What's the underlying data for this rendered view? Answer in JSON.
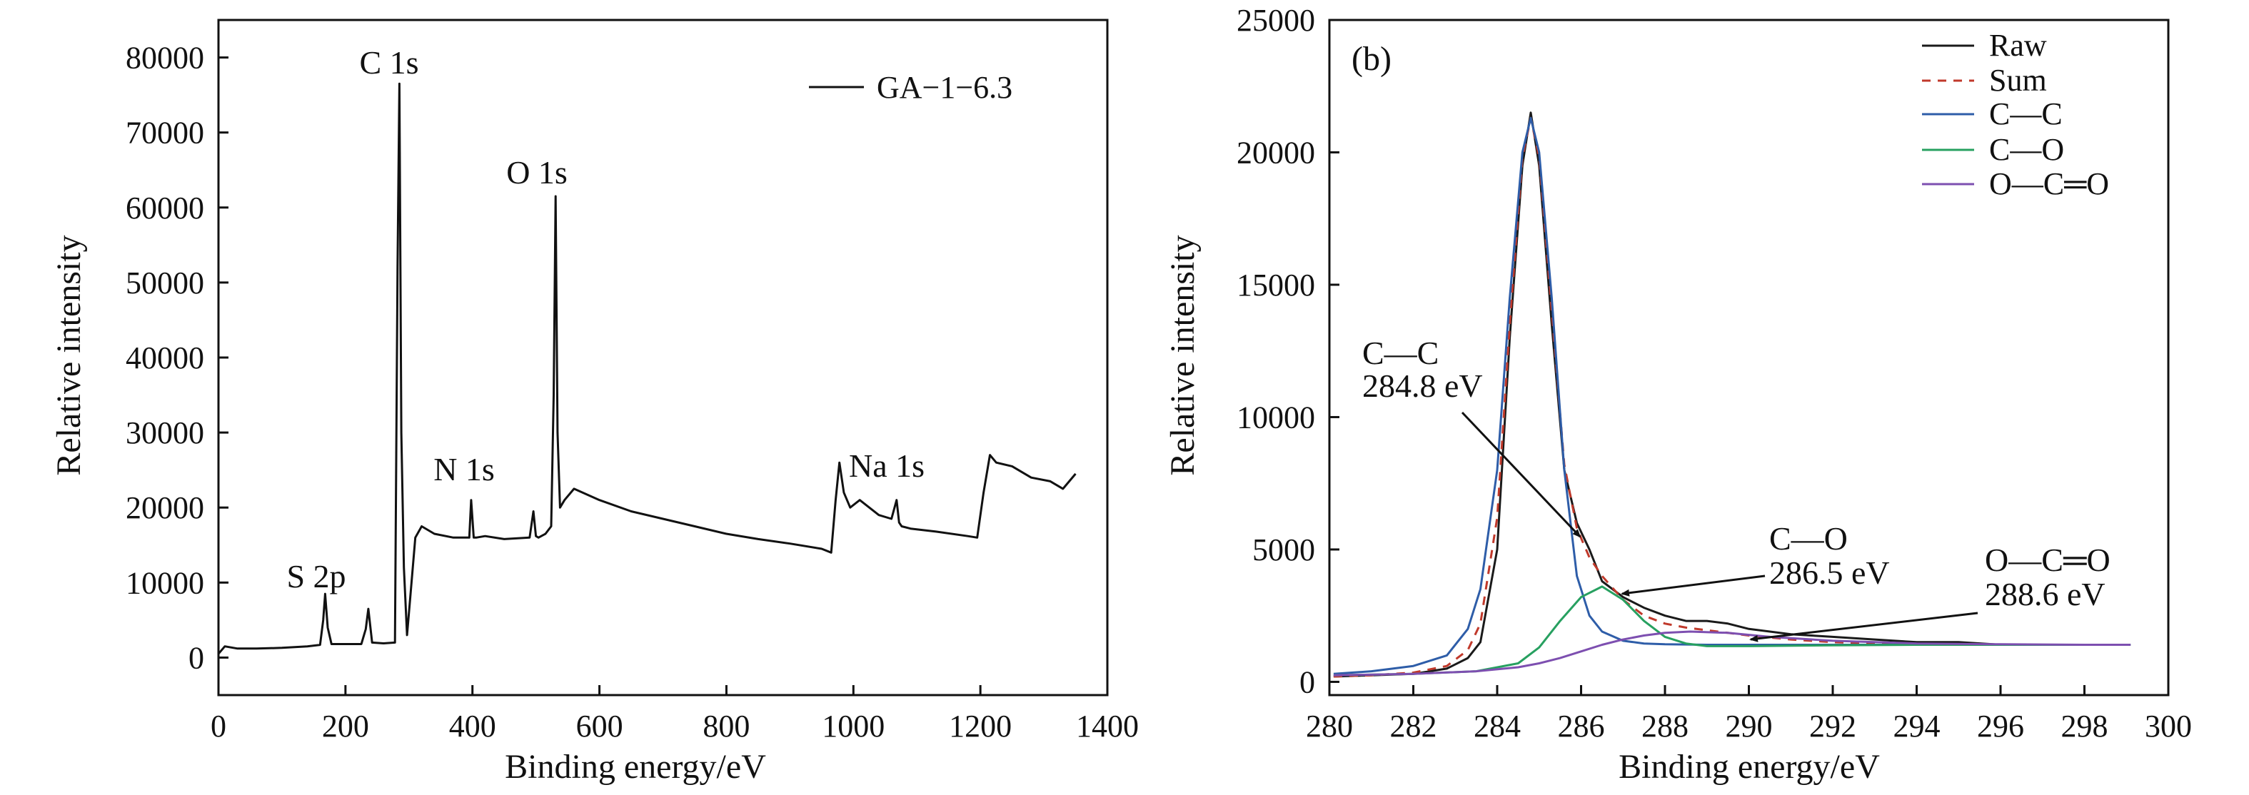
{
  "chart_data": [
    {
      "type": "line",
      "panel": "a",
      "panel_label": "",
      "xlabel": "Binding energy/eV",
      "ylabel": "Relative intensity",
      "xlim": [
        0,
        1400
      ],
      "ylim": [
        -5000,
        85000
      ],
      "xticks": [
        "0",
        "200",
        "400",
        "600",
        "800",
        "1000",
        "1200",
        "1400"
      ],
      "yticks": [
        "0",
        "10000",
        "20000",
        "30000",
        "40000",
        "50000",
        "60000",
        "70000",
        "80000"
      ],
      "grid": false,
      "legend_position": "top-right",
      "series": [
        {
          "name": "GA−1−6.3",
          "color": "#111111",
          "x": [
            0,
            10,
            30,
            60,
            100,
            140,
            160,
            165,
            168,
            172,
            178,
            200,
            225,
            232,
            236,
            242,
            260,
            278,
            282,
            285,
            288,
            292,
            297,
            302,
            310,
            320,
            340,
            370,
            395,
            398,
            402,
            406,
            420,
            450,
            490,
            496,
            500,
            504,
            515,
            524,
            528,
            531,
            534,
            538,
            545,
            560,
            600,
            650,
            700,
            750,
            800,
            850,
            900,
            950,
            965,
            972,
            978,
            985,
            995,
            1010,
            1040,
            1060,
            1068,
            1072,
            1076,
            1090,
            1130,
            1180,
            1195,
            1205,
            1215,
            1225,
            1250,
            1280,
            1310,
            1330,
            1350
          ],
          "y": [
            500,
            1500,
            1200,
            1200,
            1300,
            1500,
            1700,
            5000,
            8500,
            4000,
            1800,
            1800,
            1800,
            3800,
            6500,
            2000,
            1900,
            2000,
            52000,
            76500,
            30000,
            12000,
            3000,
            8000,
            16000,
            17500,
            16500,
            16000,
            16000,
            21000,
            16000,
            16000,
            16200,
            15800,
            16000,
            19500,
            16200,
            16000,
            16500,
            17500,
            35000,
            61500,
            30000,
            20000,
            21000,
            22500,
            21000,
            19500,
            18500,
            17500,
            16500,
            15800,
            15200,
            14500,
            14000,
            21000,
            26000,
            22000,
            20000,
            21000,
            19000,
            18500,
            21000,
            18000,
            17500,
            17200,
            16800,
            16200,
            16000,
            22000,
            27000,
            26000,
            25500,
            24000,
            23500,
            22500,
            24500
          ]
        }
      ],
      "annotations": [
        {
          "text": "S 2p",
          "x": 172,
          "y": 10500
        },
        {
          "text": "C 1s",
          "x": 285,
          "y": 78000
        },
        {
          "text": "N 1s",
          "x": 385,
          "y": 24000
        },
        {
          "text": "O 1s",
          "x": 530,
          "y": 63000
        },
        {
          "text": "Na 1s",
          "x": 1070,
          "y": 24500
        }
      ]
    },
    {
      "type": "line",
      "panel": "b",
      "panel_label": "(b)",
      "xlabel": "Binding energy/eV",
      "ylabel": "Relative intensity",
      "xlim": [
        280,
        300
      ],
      "ylim": [
        -500,
        25000
      ],
      "xticks": [
        "280",
        "282",
        "284",
        "286",
        "288",
        "290",
        "292",
        "294",
        "296",
        "298",
        "300"
      ],
      "yticks": [
        "0",
        "5000",
        "10000",
        "15000",
        "20000",
        "25000"
      ],
      "grid": false,
      "legend_position": "top-right",
      "series": [
        {
          "name": "Raw",
          "color": "#1a1a1a",
          "dash": "",
          "x": [
            280.1,
            281,
            282,
            282.8,
            283.3,
            283.6,
            284.0,
            284.3,
            284.6,
            284.8,
            285.0,
            285.3,
            285.6,
            285.9,
            286.2,
            286.5,
            287.0,
            287.5,
            288.0,
            288.5,
            289.0,
            289.5,
            290.0,
            291.0,
            292.0,
            293.0,
            294.0,
            295.0,
            296.0,
            297.0,
            298.0,
            299.1
          ],
          "y": [
            200,
            250,
            300,
            500,
            900,
            1500,
            5000,
            13000,
            19500,
            21500,
            19500,
            13500,
            8000,
            6000,
            5000,
            3800,
            3200,
            2800,
            2500,
            2300,
            2300,
            2200,
            2000,
            1800,
            1700,
            1600,
            1500,
            1500,
            1400,
            1400,
            1400,
            1400
          ]
        },
        {
          "name": "Sum",
          "color": "#c0392b",
          "dash": "12,10",
          "x": [
            280.1,
            281,
            282,
            282.8,
            283.3,
            283.6,
            284.0,
            284.3,
            284.6,
            284.8,
            285.0,
            285.3,
            285.6,
            285.9,
            286.2,
            286.5,
            287.0,
            287.5,
            288.0,
            288.5,
            289.0,
            289.5,
            290.0,
            291.0,
            292.0,
            293.0,
            294.0,
            295.0,
            296.0,
            297.0,
            298.0,
            299.1
          ],
          "y": [
            200,
            250,
            350,
            600,
            1200,
            2200,
            6200,
            13500,
            19800,
            21300,
            19800,
            14000,
            8200,
            5800,
            4700,
            4000,
            3100,
            2500,
            2200,
            2050,
            1950,
            1850,
            1750,
            1600,
            1500,
            1450,
            1420,
            1400,
            1400,
            1400,
            1400,
            1400
          ]
        },
        {
          "name": "C—C",
          "color": "#2e5da8",
          "dash": "",
          "x": [
            280.1,
            281,
            282,
            282.8,
            283.3,
            283.6,
            284.0,
            284.3,
            284.6,
            284.8,
            285.0,
            285.3,
            285.6,
            285.9,
            286.2,
            286.5,
            287.0,
            287.5,
            288.0,
            289.0,
            290.0,
            292.0,
            294.0,
            296.0,
            298.0,
            299.1
          ],
          "y": [
            300,
            400,
            600,
            1000,
            2000,
            3500,
            8000,
            14500,
            20000,
            21300,
            20000,
            14500,
            8000,
            4000,
            2500,
            1900,
            1550,
            1450,
            1420,
            1400,
            1400,
            1400,
            1400,
            1400,
            1400,
            1400
          ]
        },
        {
          "name": "C—O",
          "color": "#27a060",
          "dash": "",
          "x": [
            280.1,
            282,
            283.5,
            284.5,
            285.0,
            285.5,
            286.0,
            286.5,
            287.0,
            287.5,
            288.0,
            288.5,
            289.0,
            290.0,
            292.0,
            294.0,
            296.0,
            298.0,
            299.1
          ],
          "y": [
            250,
            300,
            400,
            700,
            1300,
            2300,
            3200,
            3600,
            3100,
            2300,
            1700,
            1450,
            1350,
            1350,
            1380,
            1400,
            1400,
            1400,
            1400
          ]
        },
        {
          "name": "O—C═O",
          "color": "#7d4fb0",
          "dash": "",
          "x": [
            280.1,
            282,
            283.5,
            284.5,
            285.0,
            285.5,
            286.0,
            286.5,
            287.0,
            287.5,
            288.0,
            288.6,
            289.5,
            290.5,
            292.0,
            294.0,
            296.0,
            298.0,
            299.1
          ],
          "y": [
            250,
            300,
            400,
            550,
            700,
            900,
            1150,
            1400,
            1600,
            1750,
            1850,
            1900,
            1850,
            1700,
            1550,
            1450,
            1420,
            1400,
            1400
          ]
        }
      ],
      "annotations": [
        {
          "lines": [
            "C—C",
            "284.8 eV"
          ]
        },
        {
          "lines": [
            "C—O",
            "286.5 eV"
          ]
        },
        {
          "lines": [
            "O—C═O",
            "288.6 eV"
          ]
        }
      ]
    }
  ]
}
